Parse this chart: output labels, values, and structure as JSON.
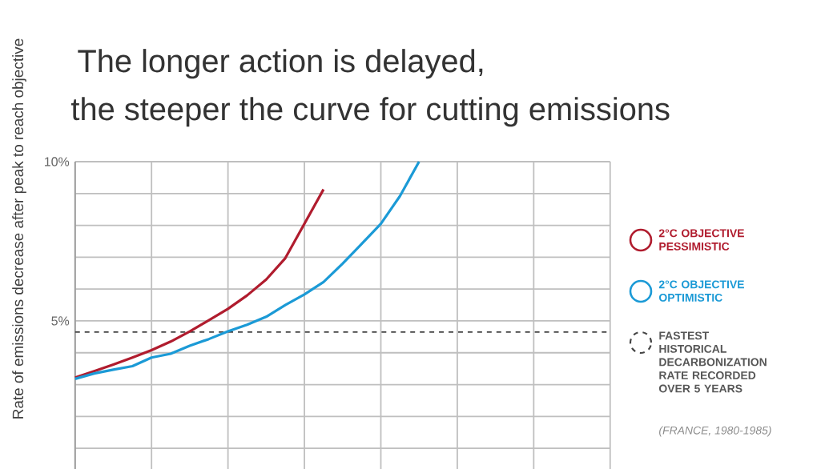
{
  "chart_data": {
    "type": "line",
    "title": "The longer action is delayed,",
    "subtitle": "the steeper the curve for cutting emissions",
    "ylabel": "Rate of emissions decrease after peak to reach objective",
    "categories": [
      null,
      null,
      null,
      null,
      null,
      null,
      null,
      null,
      null,
      null,
      null,
      null,
      null,
      null,
      null,
      null,
      null,
      null,
      null,
      null,
      null,
      null,
      null,
      null,
      null,
      null,
      null,
      null,
      null
    ],
    "series": [
      {
        "name": "2°C OBJECTIVE PESSIMISTIC",
        "color": "#b01c2e",
        "values": [
          3.22,
          3.42,
          3.63,
          3.85,
          4.08,
          4.35,
          4.67,
          5.02,
          5.38,
          5.8,
          6.3,
          6.97,
          8.05,
          9.13,
          null,
          null,
          null,
          null,
          null,
          null,
          null,
          null,
          null,
          null,
          null,
          null,
          null,
          null,
          null
        ]
      },
      {
        "name": "2°C OBJECTIVE OPTIMISTIC",
        "color": "#1b9ad6",
        "values": [
          3.18,
          3.35,
          3.47,
          3.58,
          3.85,
          3.97,
          4.22,
          4.43,
          4.67,
          4.88,
          5.13,
          5.5,
          5.83,
          6.22,
          6.8,
          7.42,
          8.05,
          8.92,
          10,
          null,
          null,
          null,
          null,
          null,
          null,
          null,
          null,
          null,
          null
        ]
      }
    ],
    "ylim": [
      0.35,
      10
    ],
    "yticks": [
      {
        "value": 1,
        "label": null
      },
      {
        "value": 2,
        "label": null
      },
      {
        "value": 3,
        "label": null
      },
      {
        "value": 4,
        "label": null
      },
      {
        "value": 5,
        "label": "5%"
      },
      {
        "value": 6,
        "label": null
      },
      {
        "value": 7,
        "label": null
      },
      {
        "value": 8,
        "label": null
      },
      {
        "value": 9,
        "label": null
      },
      {
        "value": 10,
        "label": "10%"
      }
    ],
    "ref_lines": [
      {
        "axis": "y",
        "value": 4.65,
        "label": "FASTEST HISTORICAL DECARBONIZATION RATE RECORDED OVER 5 YEARS",
        "color": "#444444",
        "line_style": "dashed"
      }
    ],
    "annotations": [
      "(FRANCE, 1980-1985)"
    ],
    "grid": true,
    "legend": "right",
    "line_style": "solid"
  }
}
